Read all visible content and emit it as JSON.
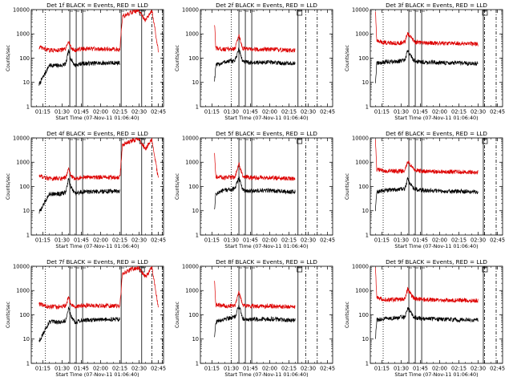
{
  "figure": {
    "panels": [
      {
        "id": "1f",
        "title": "Det 1f BLACK = Events, RED = LLD"
      },
      {
        "id": "2f",
        "title": "Det 2f BLACK = Events, RED = LLD"
      },
      {
        "id": "3f",
        "title": "Det 3f BLACK = Events, RED = LLD"
      },
      {
        "id": "4f",
        "title": "Det 4f BLACK = Events, RED = LLD"
      },
      {
        "id": "5f",
        "title": "Det 5f BLACK = Events, RED = LLD"
      },
      {
        "id": "6f",
        "title": "Det 6f BLACK = Events, RED = LLD"
      },
      {
        "id": "7f",
        "title": "Det 7f BLACK = Events, RED = LLD"
      },
      {
        "id": "8f",
        "title": "Det 8f BLACK = Events, RED = LLD"
      },
      {
        "id": "9f",
        "title": "Det 9f BLACK = Events, RED = LLD"
      }
    ]
  },
  "chart_data": [
    {
      "type": "line",
      "panel": "1f",
      "title": "Det 1f BLACK = Events, RED = LLD",
      "xlabel": "Start Time (07-Nov-11 01:06:40)",
      "ylabel": "Counts/sec",
      "yscale": "log",
      "ylim": [
        1,
        10000
      ],
      "xlim": [
        "01:06",
        "02:49"
      ],
      "x_ticks": [
        "01:15",
        "01:30",
        "01:45",
        "02:00",
        "02:15",
        "02:30",
        "02:45"
      ],
      "y_ticks": [
        "1",
        "10",
        "100",
        "1000",
        "10000"
      ],
      "markers": {
        "dotted": [
          "01:17"
        ],
        "solid": [
          "01:36",
          "01:41",
          "01:46",
          "02:16",
          "02:32"
        ],
        "dashdot": [
          "02:40",
          "02:48"
        ],
        "box": "02:31"
      },
      "x": [
        "01:11",
        "01:12",
        "01:20",
        "01:30",
        "01:33",
        "01:35",
        "01:37",
        "01:40",
        "01:45",
        "02:00",
        "02:15",
        "02:17",
        "02:25",
        "02:30",
        "02:35",
        "02:40",
        "02:45"
      ],
      "series": [
        {
          "name": "Events",
          "color": "#000000",
          "values": [
            null,
            8,
            50,
            50,
            60,
            200,
            90,
            50,
            60,
            62,
            65,
            null,
            null,
            null,
            null,
            null,
            null
          ]
        },
        {
          "name": "LLD",
          "color": "#dd0000",
          "values": [
            null,
            280,
            210,
            220,
            240,
            550,
            260,
            210,
            240,
            240,
            230,
            5000,
            8000,
            8500,
            3500,
            9000,
            200
          ]
        }
      ]
    },
    {
      "type": "line",
      "panel": "2f",
      "title": "Det 2f BLACK = Events, RED = LLD",
      "xlabel": "Start Time (07-Nov-11 01:06:40)",
      "ylabel": "Counts/sec",
      "yscale": "log",
      "ylim": [
        1,
        10000
      ],
      "xlim": [
        "01:06",
        "02:49"
      ],
      "x_ticks": [
        "01:15",
        "01:30",
        "01:45",
        "02:00",
        "02:15",
        "02:30",
        "02:45"
      ],
      "y_ticks": [
        "1",
        "10",
        "100",
        "1000",
        "10000"
      ],
      "markers": {
        "dotted": [
          "01:30"
        ],
        "solid": [
          "01:36",
          "01:41",
          "01:46",
          "02:22"
        ],
        "dashdot": [
          "02:28",
          "02:37"
        ],
        "box": "02:22"
      },
      "x": [
        "01:17",
        "01:18",
        "01:25",
        "01:33",
        "01:36",
        "01:39",
        "01:45",
        "02:00",
        "02:15",
        "02:20"
      ],
      "series": [
        {
          "name": "Events",
          "color": "#000000",
          "values": [
            12,
            50,
            70,
            80,
            250,
            70,
            65,
            68,
            60,
            60
          ]
        },
        {
          "name": "LLD",
          "color": "#dd0000",
          "values": [
            2500,
            260,
            230,
            250,
            900,
            250,
            230,
            230,
            210,
            200
          ]
        }
      ]
    },
    {
      "type": "line",
      "panel": "3f",
      "title": "Det 3f BLACK = Events, RED = LLD",
      "xlabel": "Start Time (07-Nov-11 01:06:40)",
      "ylabel": "Counts/sec",
      "yscale": "log",
      "ylim": [
        1,
        10000
      ],
      "xlim": [
        "01:06",
        "02:49"
      ],
      "x_ticks": [
        "01:15",
        "01:30",
        "01:45",
        "02:00",
        "02:15",
        "02:30",
        "02:45"
      ],
      "y_ticks": [
        "1",
        "10",
        "100",
        "1000",
        "10000"
      ],
      "markers": {
        "dotted": [
          "01:16"
        ],
        "solid": [
          "01:36",
          "01:41",
          "01:46",
          "02:34"
        ],
        "dashdot": [
          "02:35",
          "02:44"
        ],
        "box": "02:34"
      },
      "x": [
        "01:10",
        "01:11",
        "01:18",
        "01:27",
        "01:33",
        "01:35",
        "01:40",
        "01:45",
        "02:00",
        "02:15",
        "02:30"
      ],
      "series": [
        {
          "name": "Events",
          "color": "#000000",
          "values": [
            10,
            60,
            70,
            75,
            80,
            200,
            80,
            70,
            65,
            62,
            60
          ]
        },
        {
          "name": "LLD",
          "color": "#dd0000",
          "values": [
            9000,
            500,
            430,
            420,
            450,
            1100,
            480,
            430,
            410,
            400,
            380
          ]
        }
      ]
    },
    {
      "type": "line",
      "panel": "4f",
      "title": "Det 4f BLACK = Events, RED = LLD",
      "xlabel": "Start Time (07-Nov-11 01:06:40)",
      "ylabel": "Counts/sec",
      "yscale": "log",
      "ylim": [
        1,
        10000
      ],
      "xlim": [
        "01:06",
        "02:49"
      ],
      "x_ticks": [
        "01:15",
        "01:30",
        "01:45",
        "02:00",
        "02:15",
        "02:30",
        "02:45"
      ],
      "y_ticks": [
        "1",
        "10",
        "100",
        "1000",
        "10000"
      ],
      "markers": {
        "dotted": [
          "01:17"
        ],
        "solid": [
          "01:36",
          "01:41",
          "01:46",
          "02:16",
          "02:32"
        ],
        "dashdot": [
          "02:40",
          "02:48"
        ],
        "box": "02:31"
      },
      "x": [
        "01:11",
        "01:12",
        "01:20",
        "01:30",
        "01:33",
        "01:35",
        "01:37",
        "01:40",
        "01:45",
        "02:00",
        "02:15",
        "02:17",
        "02:25",
        "02:30",
        "02:35",
        "02:40",
        "02:45"
      ],
      "series": [
        {
          "name": "Events",
          "color": "#000000",
          "values": [
            null,
            8,
            50,
            50,
            60,
            200,
            90,
            50,
            60,
            62,
            65,
            null,
            null,
            null,
            null,
            null,
            null
          ]
        },
        {
          "name": "LLD",
          "color": "#dd0000",
          "values": [
            null,
            280,
            210,
            220,
            240,
            550,
            260,
            210,
            240,
            240,
            230,
            5000,
            8000,
            8500,
            3500,
            9000,
            200
          ]
        }
      ]
    },
    {
      "type": "line",
      "panel": "5f",
      "title": "Det 5f BLACK = Events, RED = LLD",
      "xlabel": "Start Time (07-Nov-11 01:06:40)",
      "ylabel": "Counts/sec",
      "yscale": "log",
      "ylim": [
        1,
        10000
      ],
      "xlim": [
        "01:06",
        "02:49"
      ],
      "x_ticks": [
        "01:15",
        "01:30",
        "01:45",
        "02:00",
        "02:15",
        "02:30",
        "02:45"
      ],
      "y_ticks": [
        "1",
        "10",
        "100",
        "1000",
        "10000"
      ],
      "markers": {
        "dotted": [
          "01:30"
        ],
        "solid": [
          "01:36",
          "01:41",
          "01:46",
          "02:22"
        ],
        "dashdot": [
          "02:28",
          "02:37"
        ],
        "box": "02:22"
      },
      "x": [
        "01:17",
        "01:18",
        "01:25",
        "01:33",
        "01:36",
        "01:39",
        "01:45",
        "02:00",
        "02:15",
        "02:20"
      ],
      "series": [
        {
          "name": "Events",
          "color": "#000000",
          "values": [
            12,
            50,
            70,
            80,
            250,
            70,
            65,
            68,
            60,
            60
          ]
        },
        {
          "name": "LLD",
          "color": "#dd0000",
          "values": [
            2500,
            260,
            230,
            250,
            900,
            250,
            230,
            230,
            210,
            200
          ]
        }
      ]
    },
    {
      "type": "line",
      "panel": "6f",
      "title": "Det 6f BLACK = Events, RED = LLD",
      "xlabel": "Start Time (07-Nov-11 01:06:40)",
      "ylabel": "Counts/sec",
      "yscale": "log",
      "ylim": [
        1,
        10000
      ],
      "xlim": [
        "01:06",
        "02:49"
      ],
      "x_ticks": [
        "01:15",
        "01:30",
        "01:45",
        "02:00",
        "02:15",
        "02:30",
        "02:45"
      ],
      "y_ticks": [
        "1",
        "10",
        "100",
        "1000",
        "10000"
      ],
      "markers": {
        "dotted": [
          "01:16"
        ],
        "solid": [
          "01:36",
          "01:41",
          "01:46",
          "02:34"
        ],
        "dashdot": [
          "02:35",
          "02:44"
        ],
        "box": "02:34"
      },
      "x": [
        "01:10",
        "01:11",
        "01:18",
        "01:27",
        "01:33",
        "01:35",
        "01:40",
        "01:45",
        "02:00",
        "02:15",
        "02:30"
      ],
      "series": [
        {
          "name": "Events",
          "color": "#000000",
          "values": [
            10,
            60,
            70,
            75,
            80,
            200,
            80,
            70,
            65,
            62,
            60
          ]
        },
        {
          "name": "LLD",
          "color": "#dd0000",
          "values": [
            9000,
            500,
            430,
            420,
            450,
            1100,
            480,
            430,
            410,
            400,
            380
          ]
        }
      ]
    },
    {
      "type": "line",
      "panel": "7f",
      "title": "Det 7f BLACK = Events, RED = LLD",
      "xlabel": "Start Time (07-Nov-11 01:06:40)",
      "ylabel": "Counts/sec",
      "yscale": "log",
      "ylim": [
        1,
        10000
      ],
      "xlim": [
        "01:06",
        "02:49"
      ],
      "x_ticks": [
        "01:15",
        "01:30",
        "01:45",
        "02:00",
        "02:15",
        "02:30",
        "02:45"
      ],
      "y_ticks": [
        "1",
        "10",
        "100",
        "1000",
        "10000"
      ],
      "markers": {
        "dotted": [
          "01:17"
        ],
        "solid": [
          "01:36",
          "01:41",
          "01:46",
          "02:16",
          "02:32"
        ],
        "dashdot": [
          "02:40",
          "02:48"
        ],
        "box": "02:31"
      },
      "x": [
        "01:11",
        "01:12",
        "01:20",
        "01:30",
        "01:33",
        "01:35",
        "01:37",
        "01:40",
        "01:45",
        "02:00",
        "02:15",
        "02:17",
        "02:25",
        "02:30",
        "02:35",
        "02:40",
        "02:45"
      ],
      "series": [
        {
          "name": "Events",
          "color": "#000000",
          "values": [
            null,
            8,
            50,
            50,
            60,
            200,
            90,
            50,
            60,
            62,
            65,
            null,
            null,
            null,
            null,
            null,
            null
          ]
        },
        {
          "name": "LLD",
          "color": "#dd0000",
          "values": [
            null,
            280,
            210,
            220,
            240,
            550,
            260,
            210,
            240,
            240,
            230,
            5000,
            8000,
            8500,
            3500,
            9000,
            200
          ]
        }
      ]
    },
    {
      "type": "line",
      "panel": "8f",
      "title": "Det 8f BLACK = Events, RED = LLD",
      "xlabel": "Start Time (07-Nov-11 01:06:40)",
      "ylabel": "Counts/sec",
      "yscale": "log",
      "ylim": [
        1,
        10000
      ],
      "xlim": [
        "01:06",
        "02:49"
      ],
      "x_ticks": [
        "01:15",
        "01:30",
        "01:45",
        "02:00",
        "02:15",
        "02:30",
        "02:45"
      ],
      "y_ticks": [
        "1",
        "10",
        "100",
        "1000",
        "10000"
      ],
      "markers": {
        "dotted": [
          "01:30"
        ],
        "solid": [
          "01:36",
          "01:41",
          "01:46",
          "02:22"
        ],
        "dashdot": [
          "02:28",
          "02:37"
        ],
        "box": "02:22"
      },
      "x": [
        "01:17",
        "01:18",
        "01:25",
        "01:33",
        "01:36",
        "01:39",
        "01:45",
        "02:00",
        "02:15",
        "02:20"
      ],
      "series": [
        {
          "name": "Events",
          "color": "#000000",
          "values": [
            12,
            50,
            70,
            80,
            250,
            70,
            65,
            68,
            60,
            60
          ]
        },
        {
          "name": "LLD",
          "color": "#dd0000",
          "values": [
            2500,
            260,
            230,
            250,
            900,
            250,
            230,
            230,
            210,
            200
          ]
        }
      ]
    },
    {
      "type": "line",
      "panel": "9f",
      "title": "Det 9f BLACK = Events, RED = LLD",
      "xlabel": "Start Time (07-Nov-11 01:06:40)",
      "ylabel": "Counts/sec",
      "yscale": "log",
      "ylim": [
        1,
        10000
      ],
      "xlim": [
        "01:06",
        "02:49"
      ],
      "x_ticks": [
        "01:15",
        "01:30",
        "01:45",
        "02:00",
        "02:15",
        "02:30",
        "02:45"
      ],
      "y_ticks": [
        "1",
        "10",
        "100",
        "1000",
        "10000"
      ],
      "markers": {
        "dotted": [
          "01:16"
        ],
        "solid": [
          "01:36",
          "01:41",
          "01:46",
          "02:34"
        ],
        "dashdot": [
          "02:35",
          "02:44"
        ],
        "box": "02:34"
      },
      "x": [
        "01:10",
        "01:11",
        "01:18",
        "01:27",
        "01:33",
        "01:35",
        "01:40",
        "01:45",
        "02:00",
        "02:15",
        "02:30"
      ],
      "series": [
        {
          "name": "Events",
          "color": "#000000",
          "values": [
            10,
            60,
            70,
            75,
            80,
            200,
            80,
            70,
            65,
            62,
            60
          ]
        },
        {
          "name": "LLD",
          "color": "#dd0000",
          "values": [
            9000,
            500,
            430,
            420,
            450,
            1100,
            480,
            430,
            410,
            400,
            380
          ]
        }
      ]
    }
  ]
}
